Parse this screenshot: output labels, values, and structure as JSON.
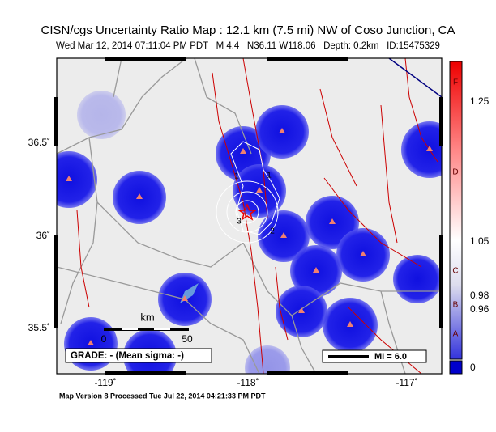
{
  "header": {
    "title": "CISN/cgs Uncertainty Ratio Map : 12.1 km (7.5 mi) NW of Coso Junction, CA",
    "subtitle": "Wed Mar 12, 2014 07:11:04 PM PDT   M 4.4   N36.11 W118.06   Depth: 0.2km   ID:15475329"
  },
  "map": {
    "latitude_labels": [
      "36.5˚",
      "36˚",
      "35.5˚"
    ],
    "longitude_labels": [
      "-119˚",
      "-118˚",
      "-117˚"
    ],
    "contour_labels": [
      "1",
      "1",
      "3",
      "2"
    ],
    "scale_bar": {
      "unit": "km",
      "start": "0",
      "end": "50"
    },
    "grade": "GRADE: - (Mean sigma: -)",
    "magnitude": "MI = 6.0"
  },
  "colorbar": {
    "grades": [
      "F",
      "D",
      "C",
      "B",
      "A"
    ],
    "ticks": [
      "1.25",
      "1.05",
      "0.98",
      "0.96",
      "0"
    ]
  },
  "footer": "Map Version 8 Processed Tue Jul 22, 2014 04:21:33 PM PDT"
}
